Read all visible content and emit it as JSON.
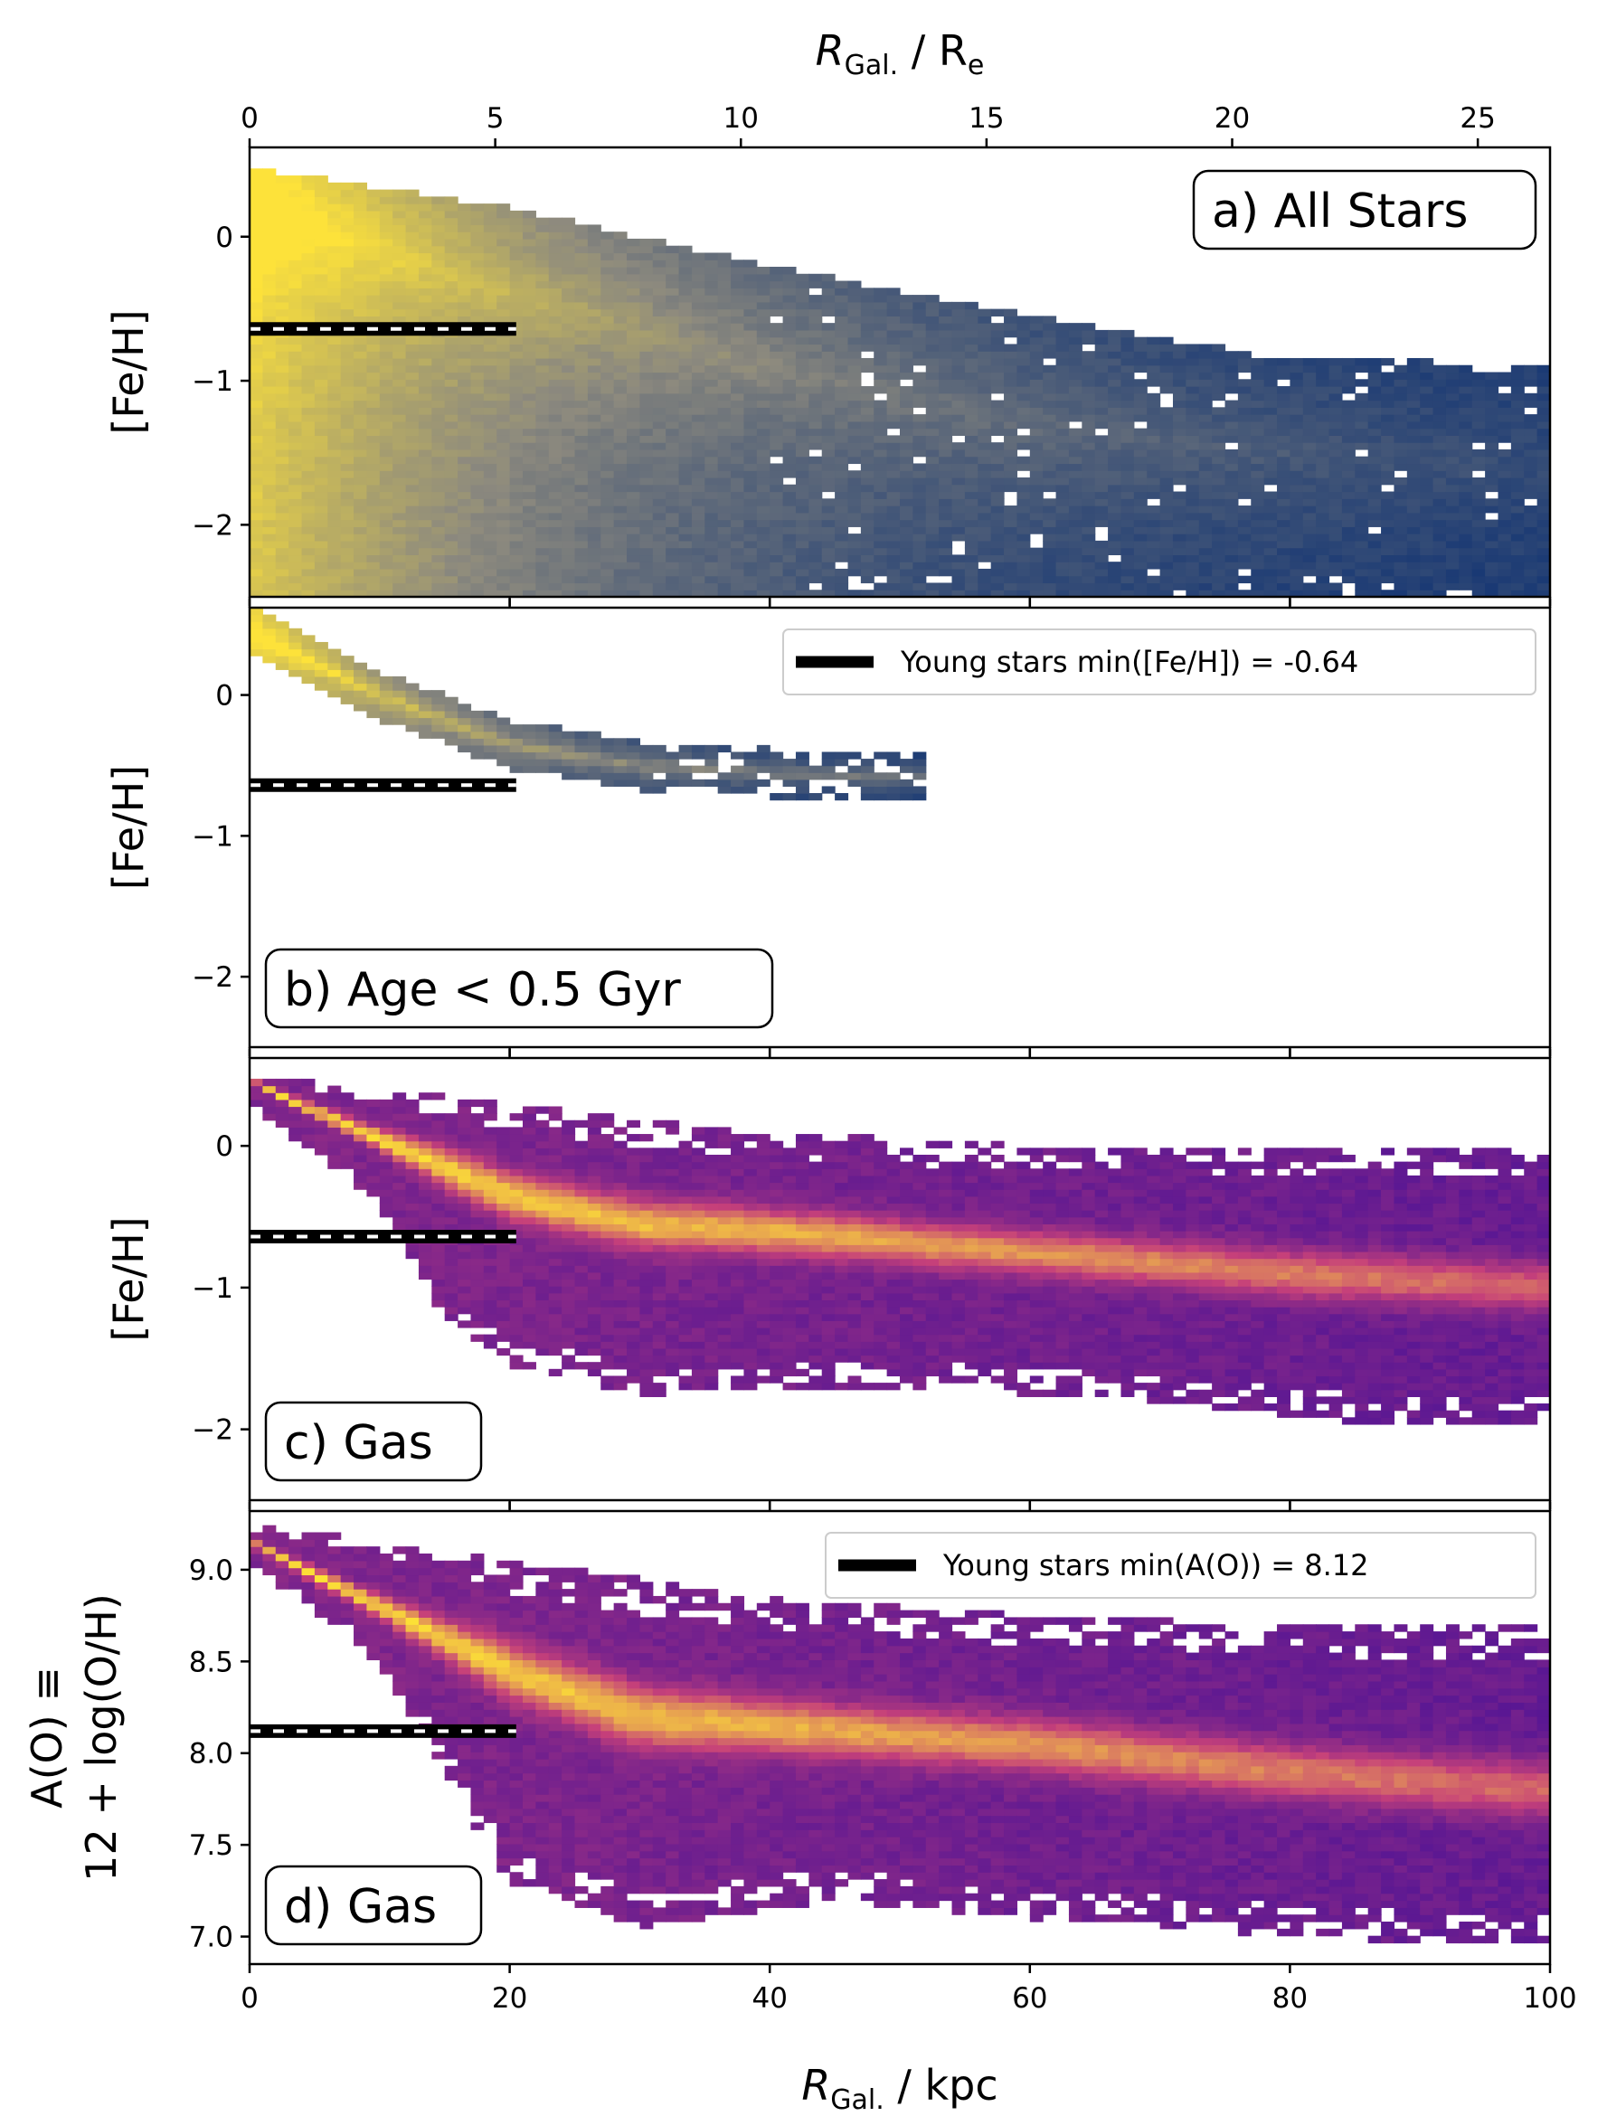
{
  "figure": {
    "top_axis": {
      "label_main": "R",
      "label_sub": "Gal.",
      "label_rest": " / R",
      "label_rest_sub": "e",
      "range": [
        0,
        26.47
      ],
      "ticks": [
        0,
        5,
        10,
        15,
        20,
        25
      ],
      "tick_labels": [
        "0",
        "5",
        "10",
        "15",
        "20",
        "25"
      ]
    },
    "bottom_axis": {
      "label_main": "R",
      "label_sub": "Gal.",
      "label_rest": " / kpc",
      "range": [
        0,
        100
      ],
      "ticks": [
        0,
        20,
        40,
        60,
        80,
        100
      ],
      "tick_labels": [
        "0",
        "20",
        "40",
        "60",
        "80",
        "100"
      ]
    },
    "colors": {
      "stars_low": "#0e3173",
      "stars_mid": "#8d8a7e",
      "stars_high": "#fde23a",
      "gas_low": "#3c0c9a",
      "gas_mid": "#c6407a",
      "gas_high": "#fde335",
      "marker_line": "#000000"
    }
  },
  "chart_data": [
    {
      "type": "heatmap",
      "panel_label": "a) All Stars",
      "ylabel": "[Fe/H]",
      "x_unit": "kpc",
      "xlim": [
        0,
        100
      ],
      "ylim": [
        -2.5,
        0.62
      ],
      "yticks": [
        0,
        -1,
        -2
      ],
      "ytick_labels": [
        "0",
        "−1",
        "−2"
      ],
      "colormap": "cividis",
      "upper_envelope": [
        [
          0,
          0.48
        ],
        [
          20,
          0.2
        ],
        [
          40,
          -0.2
        ],
        [
          60,
          -0.55
        ],
        [
          80,
          -0.85
        ],
        [
          100,
          -0.88
        ]
      ],
      "lower_bound": -2.5,
      "ridge": [
        [
          0,
          0.2
        ],
        [
          10,
          -0.1
        ],
        [
          20,
          -0.4
        ],
        [
          40,
          -0.9
        ],
        [
          60,
          -1.3
        ],
        [
          80,
          -1.5
        ],
        [
          100,
          -1.6
        ]
      ],
      "min_marker": {
        "value": -0.64,
        "x_range": [
          0,
          20.5
        ]
      }
    },
    {
      "type": "heatmap",
      "panel_label": "b) Age < 0.5 Gyr",
      "panel_label_left": "b) Age ",
      "panel_label_right": "< 0.5 Gyr",
      "ylabel": "[Fe/H]",
      "x_unit": "kpc",
      "xlim": [
        0,
        100
      ],
      "ylim": [
        -2.5,
        0.62
      ],
      "yticks": [
        0,
        -1,
        -2
      ],
      "ytick_labels": [
        "0",
        "−1",
        "−2"
      ],
      "colormap": "cividis",
      "ridge": [
        [
          0,
          0.45
        ],
        [
          10,
          0.0
        ],
        [
          20,
          -0.35
        ],
        [
          30,
          -0.5
        ],
        [
          40,
          -0.55
        ],
        [
          50,
          -0.58
        ]
      ],
      "band_halfwidth": 0.12,
      "min_marker": {
        "value": -0.64,
        "x_range": [
          0,
          20.5
        ]
      },
      "legend": {
        "label": "Young stars min([Fe/H]) = -0.64",
        "position": "upper right"
      }
    },
    {
      "type": "heatmap",
      "panel_label": "c) Gas",
      "ylabel": "[Fe/H]",
      "x_unit": "kpc",
      "xlim": [
        0,
        100
      ],
      "ylim": [
        -2.5,
        0.62
      ],
      "yticks": [
        0,
        -1,
        -2
      ],
      "ytick_labels": [
        "0",
        "−1",
        "−2"
      ],
      "colormap": "plasma",
      "ridge": [
        [
          0,
          0.45
        ],
        [
          10,
          0.05
        ],
        [
          20,
          -0.35
        ],
        [
          30,
          -0.55
        ],
        [
          40,
          -0.6
        ],
        [
          60,
          -0.75
        ],
        [
          80,
          -0.9
        ],
        [
          100,
          -1.0
        ]
      ],
      "upper_envelope": [
        [
          0,
          0.5
        ],
        [
          20,
          0.3
        ],
        [
          40,
          0.1
        ],
        [
          60,
          0.0
        ],
        [
          80,
          0.0
        ],
        [
          100,
          0.0
        ]
      ],
      "lower_envelope": [
        [
          0,
          0.3
        ],
        [
          10,
          -0.4
        ],
        [
          15,
          -1.2
        ],
        [
          20,
          -1.55
        ],
        [
          30,
          -1.75
        ],
        [
          50,
          -1.7
        ],
        [
          70,
          -1.8
        ],
        [
          85,
          -1.95
        ],
        [
          100,
          -1.95
        ]
      ],
      "min_marker": {
        "value": -0.64,
        "x_range": [
          0,
          20.5
        ]
      }
    },
    {
      "type": "heatmap",
      "panel_label": "d) Gas",
      "ylabel": "A(O) ≡",
      "ylabel_line2": "12 + log(O/H)",
      "x_unit": "kpc",
      "xlim": [
        0,
        100
      ],
      "ylim": [
        6.85,
        9.32
      ],
      "yticks": [
        9.0,
        8.5,
        8.0,
        7.5,
        7.0
      ],
      "ytick_labels": [
        "9.0",
        "8.5",
        "8.0",
        "7.5",
        "7.0"
      ],
      "colormap": "plasma",
      "ridge": [
        [
          0,
          9.15
        ],
        [
          10,
          8.8
        ],
        [
          20,
          8.45
        ],
        [
          30,
          8.2
        ],
        [
          40,
          8.15
        ],
        [
          60,
          8.05
        ],
        [
          80,
          7.9
        ],
        [
          100,
          7.8
        ]
      ],
      "upper_envelope": [
        [
          0,
          9.25
        ],
        [
          20,
          9.05
        ],
        [
          40,
          8.85
        ],
        [
          60,
          8.75
        ],
        [
          80,
          8.7
        ],
        [
          100,
          8.7
        ]
      ],
      "lower_envelope": [
        [
          0,
          9.05
        ],
        [
          10,
          8.5
        ],
        [
          15,
          7.9
        ],
        [
          20,
          7.3
        ],
        [
          30,
          7.05
        ],
        [
          45,
          7.2
        ],
        [
          60,
          7.1
        ],
        [
          80,
          7.0
        ],
        [
          100,
          6.95
        ]
      ],
      "min_marker": {
        "value": 8.12,
        "x_range": [
          0,
          20.5
        ]
      },
      "legend": {
        "label": "Young stars min(A(O)) = 8.12",
        "position": "upper right"
      }
    }
  ]
}
